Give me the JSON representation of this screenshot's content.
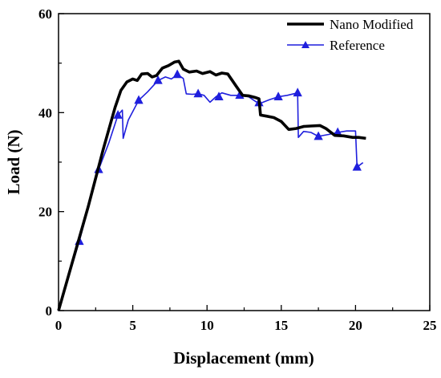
{
  "chart_data": {
    "type": "line",
    "xlabel": "Displacement (mm)",
    "ylabel": "Load (N)",
    "xlim": [
      0,
      25
    ],
    "ylim": [
      0,
      60
    ],
    "xticks": [
      0,
      5,
      10,
      15,
      20,
      25
    ],
    "yticks": [
      0,
      20,
      40,
      60
    ],
    "xtick_labels": [
      "0",
      "5",
      "10",
      "15",
      "20",
      "25"
    ],
    "ytick_labels": [
      "0",
      "20",
      "40",
      "60"
    ],
    "grid": false,
    "legend_position": "top-right",
    "series": [
      {
        "name": "Nano Modified",
        "color": "#000000",
        "marker": "none",
        "points": [
          [
            0,
            0
          ],
          [
            1.0,
            10.5
          ],
          [
            2.0,
            21
          ],
          [
            3.0,
            32.5
          ],
          [
            3.8,
            41
          ],
          [
            4.2,
            44.5
          ],
          [
            4.6,
            46.2
          ],
          [
            5.0,
            46.8
          ],
          [
            5.3,
            46.5
          ],
          [
            5.6,
            47.8
          ],
          [
            6.0,
            47.9
          ],
          [
            6.3,
            47.2
          ],
          [
            6.6,
            47.5
          ],
          [
            7.0,
            49.0
          ],
          [
            7.4,
            49.5
          ],
          [
            7.8,
            50.2
          ],
          [
            8.1,
            50.4
          ],
          [
            8.4,
            48.8
          ],
          [
            8.8,
            48.2
          ],
          [
            9.3,
            48.4
          ],
          [
            9.7,
            47.9
          ],
          [
            10.2,
            48.3
          ],
          [
            10.6,
            47.6
          ],
          [
            11.0,
            48.0
          ],
          [
            11.4,
            47.8
          ],
          [
            11.7,
            46.5
          ],
          [
            12.0,
            45.2
          ],
          [
            12.4,
            43.5
          ],
          [
            12.8,
            43.4
          ],
          [
            13.2,
            43.1
          ],
          [
            13.5,
            42.8
          ],
          [
            13.6,
            39.5
          ],
          [
            14.0,
            39.3
          ],
          [
            14.5,
            39.0
          ],
          [
            15.0,
            38.2
          ],
          [
            15.5,
            36.6
          ],
          [
            16.0,
            36.8
          ],
          [
            16.5,
            37.2
          ],
          [
            17.0,
            37.3
          ],
          [
            17.6,
            37.4
          ],
          [
            18.0,
            36.8
          ],
          [
            18.6,
            35.4
          ],
          [
            19.2,
            35.3
          ],
          [
            19.8,
            35.0
          ],
          [
            20.2,
            35.0
          ],
          [
            20.7,
            34.8
          ]
        ]
      },
      {
        "name": "Reference",
        "color": "#1f1fdd",
        "marker": "triangle",
        "points": [
          [
            0,
            0
          ],
          [
            1.4,
            14.0
          ],
          [
            2.7,
            28.5
          ],
          [
            3.4,
            34.0
          ],
          [
            4.0,
            39.5
          ],
          [
            4.3,
            40.5
          ],
          [
            4.35,
            34.8
          ],
          [
            4.7,
            38.5
          ],
          [
            5.4,
            42.5
          ],
          [
            6.0,
            44.2
          ],
          [
            6.7,
            46.5
          ],
          [
            7.2,
            47.2
          ],
          [
            7.6,
            46.8
          ],
          [
            8.0,
            47.7
          ],
          [
            8.4,
            46.9
          ],
          [
            8.6,
            43.8
          ],
          [
            9.0,
            43.7
          ],
          [
            9.4,
            43.8
          ],
          [
            9.8,
            43.5
          ],
          [
            10.2,
            42.1
          ],
          [
            10.6,
            43.2
          ],
          [
            11.0,
            44.0
          ],
          [
            11.6,
            43.5
          ],
          [
            12.2,
            43.5
          ],
          [
            12.8,
            43.2
          ],
          [
            13.3,
            42.2
          ],
          [
            13.6,
            41.9
          ],
          [
            14.2,
            42.6
          ],
          [
            14.8,
            43.2
          ],
          [
            15.4,
            43.5
          ],
          [
            16.1,
            44.0
          ],
          [
            16.15,
            35.0
          ],
          [
            16.5,
            36.2
          ],
          [
            17.0,
            36.0
          ],
          [
            17.5,
            35.2
          ],
          [
            18.2,
            35.6
          ],
          [
            18.8,
            36.0
          ],
          [
            19.4,
            36.3
          ],
          [
            20.0,
            36.3
          ],
          [
            20.1,
            29.0
          ],
          [
            20.5,
            29.9
          ]
        ],
        "marker_points": [
          [
            1.4,
            14.0
          ],
          [
            2.7,
            28.5
          ],
          [
            4.0,
            39.5
          ],
          [
            5.4,
            42.5
          ],
          [
            6.7,
            46.5
          ],
          [
            8.0,
            47.7
          ],
          [
            9.4,
            43.8
          ],
          [
            10.8,
            43.2
          ],
          [
            12.2,
            43.5
          ],
          [
            13.5,
            42.0
          ],
          [
            14.8,
            43.2
          ],
          [
            16.1,
            44.0
          ],
          [
            17.5,
            35.2
          ],
          [
            18.8,
            36.0
          ],
          [
            20.1,
            29.0
          ]
        ]
      }
    ]
  }
}
